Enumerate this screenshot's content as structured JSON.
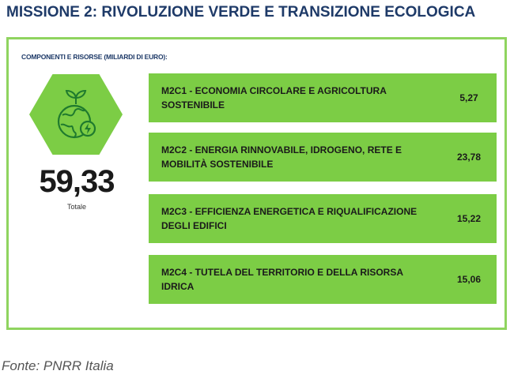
{
  "title": "MISSIONE 2: RIVOLUZIONE VERDE E TRANSIZIONE ECOLOGICA",
  "subtitle": "COMPONENTI E RISORSE (MILIARDI DI EURO):",
  "total": {
    "value": "59,33",
    "label": "Totale"
  },
  "icon": "eco-earth-energy-icon",
  "colors": {
    "green": "#7ccd45",
    "border": "#8fd45f",
    "title": "#1e3a68"
  },
  "chart_data": {
    "type": "table",
    "rows": [
      {
        "label": "M2C1 - ECONOMIA CIRCOLARE E AGRICOLTURA SOSTENIBILE",
        "value": "5,27"
      },
      {
        "label": "M2C2 - ENERGIA RINNOVABILE, IDROGENO, RETE E MOBILITÀ SOSTENIBILE",
        "value": "23,78"
      },
      {
        "label": "M2C3 - EFFICIENZA ENERGETICA E RIQUALIFICAZIONE DEGLI EDIFICI",
        "value": "15,22"
      },
      {
        "label": "M2C4 - TUTELA DEL TERRITORIO E DELLA RISORSA IDRICA",
        "value": "15,06"
      }
    ]
  },
  "source": "Fonte: PNRR Italia"
}
